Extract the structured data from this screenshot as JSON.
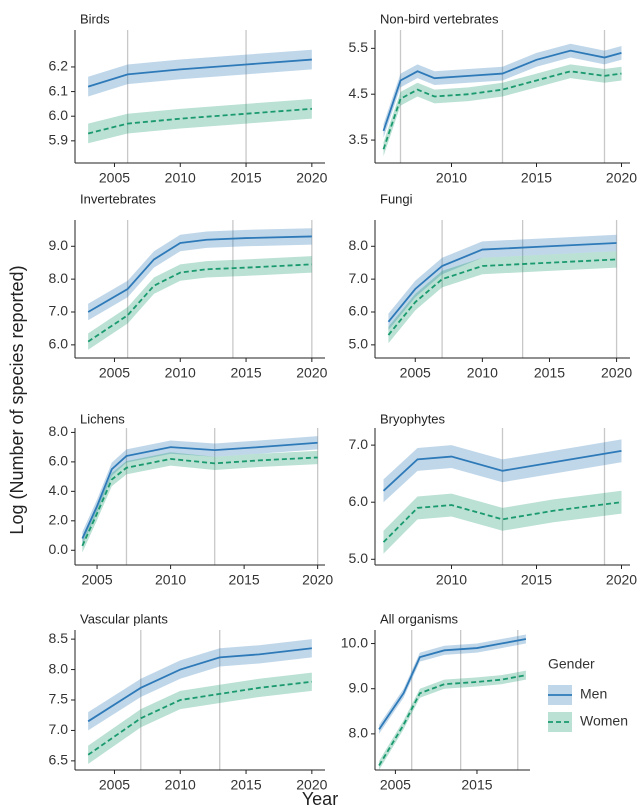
{
  "ylabel": "Log (Number of species reported)",
  "xlabel": "Year",
  "legend_title": "Gender",
  "chart_data": [
    {
      "type": "line",
      "title": "Birds",
      "x": [
        2003,
        2006,
        2010,
        2015,
        2020
      ],
      "series": [
        {
          "name": "Men",
          "color": "#2e7ab8",
          "values": [
            6.12,
            6.17,
            6.19,
            6.21,
            6.23
          ],
          "ci": 0.04
        },
        {
          "name": "Women",
          "color": "#1a9a6e",
          "values": [
            5.93,
            5.97,
            5.99,
            6.01,
            6.03
          ],
          "ci": 0.04
        }
      ],
      "xlim": [
        2002,
        2021
      ],
      "xticks": [
        2005,
        2010,
        2015,
        2020
      ],
      "vlines": [
        2006,
        2015
      ],
      "ylim": [
        5.81,
        6.35
      ],
      "yticks": [
        5.9,
        {
          "value": 6,
          "label": "6.0"
        },
        6.1,
        6.2
      ]
    },
    {
      "type": "line",
      "title": "Non-bird vertebrates",
      "x": [
        2006,
        2007,
        2008,
        2009,
        2011,
        2013,
        2015,
        2017,
        2019,
        2020
      ],
      "series": [
        {
          "name": "Men",
          "color": "#2e7ab8",
          "values": [
            3.7,
            4.8,
            5.0,
            4.85,
            4.9,
            4.95,
            5.25,
            5.45,
            5.3,
            5.4
          ],
          "ci": 0.15
        },
        {
          "name": "Women",
          "color": "#1a9a6e",
          "values": [
            3.3,
            4.4,
            4.6,
            4.45,
            4.5,
            4.6,
            4.8,
            5.0,
            4.9,
            4.95
          ],
          "ci": 0.15
        }
      ],
      "xlim": [
        2005.5,
        2020.5
      ],
      "xticks": [
        2010,
        2015,
        2020
      ],
      "vlines": [
        2007,
        2013,
        2019
      ],
      "ylim": [
        3.0,
        5.9
      ],
      "yticks": [
        3.5,
        4.5,
        5.5
      ]
    },
    {
      "type": "line",
      "title": "Invertebrates",
      "x": [
        2003,
        2006,
        2008,
        2010,
        2012,
        2015,
        2020
      ],
      "series": [
        {
          "name": "Men",
          "color": "#2e7ab8",
          "values": [
            7.0,
            7.7,
            8.6,
            9.1,
            9.2,
            9.25,
            9.3
          ],
          "ci": 0.25
        },
        {
          "name": "Women",
          "color": "#1a9a6e",
          "values": [
            6.1,
            6.9,
            7.8,
            8.2,
            8.3,
            8.35,
            8.45
          ],
          "ci": 0.25
        }
      ],
      "xlim": [
        2002,
        2021
      ],
      "xticks": [
        2005,
        2010,
        2015,
        2020
      ],
      "vlines": [
        2006,
        2014,
        2020
      ],
      "ylim": [
        5.6,
        9.8
      ],
      "yticks": [
        {
          "value": 6,
          "label": "6.0"
        },
        {
          "value": 7,
          "label": "7.0"
        },
        {
          "value": 8,
          "label": "8.0"
        },
        {
          "value": 9,
          "label": "9.0"
        }
      ]
    },
    {
      "type": "line",
      "title": "Fungi",
      "x": [
        2003,
        2005,
        2007,
        2010,
        2015,
        2020
      ],
      "series": [
        {
          "name": "Men",
          "color": "#2e7ab8",
          "values": [
            5.7,
            6.7,
            7.4,
            7.9,
            8.0,
            8.1
          ],
          "ci": 0.25
        },
        {
          "name": "Women",
          "color": "#1a9a6e",
          "values": [
            5.3,
            6.3,
            7.0,
            7.4,
            7.5,
            7.6
          ],
          "ci": 0.25
        }
      ],
      "xlim": [
        2002,
        2021
      ],
      "xticks": [
        2005,
        2010,
        2015,
        2020
      ],
      "vlines": [
        2007,
        2013,
        2020
      ],
      "ylim": [
        4.6,
        8.8
      ],
      "yticks": [
        {
          "value": 5,
          "label": "5.0"
        },
        {
          "value": 6,
          "label": "6.0"
        },
        {
          "value": 7,
          "label": "7.0"
        },
        {
          "value": 8,
          "label": "8.0"
        }
      ]
    },
    {
      "type": "line",
      "title": "Lichens",
      "x": [
        2004,
        2005,
        2006,
        2007,
        2010,
        2013,
        2016,
        2020
      ],
      "series": [
        {
          "name": "Men",
          "color": "#2e7ab8",
          "values": [
            0.8,
            3.0,
            5.5,
            6.4,
            7.0,
            6.8,
            7.0,
            7.3
          ],
          "ci": 0.45
        },
        {
          "name": "Women",
          "color": "#1a9a6e",
          "values": [
            0.3,
            2.5,
            4.8,
            5.6,
            6.2,
            5.9,
            6.1,
            6.3
          ],
          "ci": 0.45
        }
      ],
      "xlim": [
        2003.5,
        2020.5
      ],
      "xticks": [
        2005,
        2010,
        2015,
        2020
      ],
      "vlines": [
        2007,
        2013,
        2020
      ],
      "ylim": [
        -1,
        8.3
      ],
      "yticks": [
        {
          "value": 0,
          "label": "0.0"
        },
        {
          "value": 2,
          "label": "2.0"
        },
        {
          "value": 4,
          "label": "4.0"
        },
        {
          "value": 6,
          "label": "6.0"
        },
        {
          "value": 8,
          "label": "8.0"
        }
      ]
    },
    {
      "type": "line",
      "title": "Bryophytes",
      "x": [
        2006,
        2008,
        2010,
        2013,
        2016,
        2020
      ],
      "series": [
        {
          "name": "Men",
          "color": "#2e7ab8",
          "values": [
            6.2,
            6.75,
            6.8,
            6.55,
            6.7,
            6.9
          ],
          "ci": 0.2
        },
        {
          "name": "Women",
          "color": "#1a9a6e",
          "values": [
            5.3,
            5.9,
            5.95,
            5.7,
            5.85,
            6.0
          ],
          "ci": 0.2
        }
      ],
      "xlim": [
        2005.5,
        2020.5
      ],
      "xticks": [
        2010,
        2015,
        2020
      ],
      "vlines": [
        2013,
        2019
      ],
      "ylim": [
        4.9,
        7.3
      ],
      "yticks": [
        {
          "value": 5,
          "label": "5.0"
        },
        {
          "value": 6,
          "label": "6.0"
        },
        {
          "value": 7,
          "label": "7.0"
        }
      ]
    },
    {
      "type": "line",
      "title": "Vascular plants",
      "x": [
        2003,
        2007,
        2010,
        2013,
        2016,
        2020
      ],
      "series": [
        {
          "name": "Men",
          "color": "#2e7ab8",
          "values": [
            7.15,
            7.7,
            8.0,
            8.2,
            8.25,
            8.35
          ],
          "ci": 0.15
        },
        {
          "name": "Women",
          "color": "#1a9a6e",
          "values": [
            6.6,
            7.2,
            7.5,
            7.6,
            7.7,
            7.8
          ],
          "ci": 0.15
        }
      ],
      "xlim": [
        2002,
        2021
      ],
      "xticks": [
        2005,
        2010,
        2015,
        2020
      ],
      "vlines": [
        2007,
        2013
      ],
      "ylim": [
        6.35,
        8.65
      ],
      "yticks": [
        6.5,
        {
          "value": 7,
          "label": "7.0"
        },
        7.5,
        {
          "value": 8,
          "label": "8.0"
        },
        8.5
      ]
    },
    {
      "type": "line",
      "title": "All organisms",
      "x": [
        2003,
        2006,
        2008,
        2011,
        2015,
        2018,
        2021
      ],
      "series": [
        {
          "name": "Men",
          "color": "#2e7ab8",
          "values": [
            8.1,
            8.9,
            9.7,
            9.85,
            9.9,
            10.0,
            10.1
          ],
          "ci": 0.1
        },
        {
          "name": "Women",
          "color": "#1a9a6e",
          "values": [
            7.3,
            8.2,
            8.9,
            9.1,
            9.15,
            9.2,
            9.3
          ],
          "ci": 0.1
        }
      ],
      "xlim": [
        2002.5,
        2021.5
      ],
      "xticks": [
        2005,
        2015
      ],
      "vlines": [
        2007,
        2013,
        2020
      ],
      "ylim": [
        7.2,
        10.3
      ],
      "yticks": [
        {
          "value": 8,
          "label": "8.0"
        },
        {
          "value": 9,
          "label": "9.0"
        },
        {
          "value": 10,
          "label": "10.0"
        }
      ]
    }
  ]
}
